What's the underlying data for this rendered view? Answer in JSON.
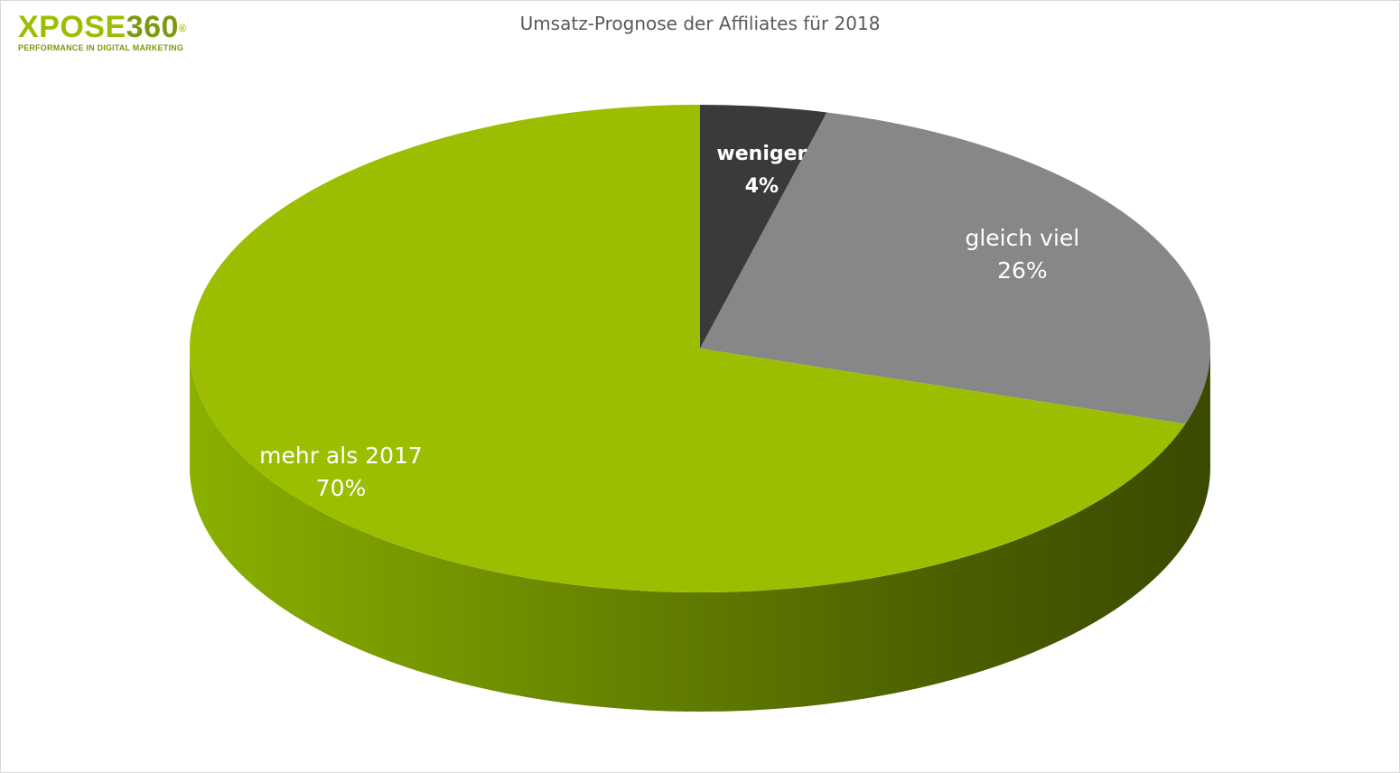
{
  "logo": {
    "brand_letters": "XPOSE",
    "brand_number": "360",
    "registered_mark": "®",
    "tagline": "PERFORMANCE IN DIGITAL MARKETING"
  },
  "colors": {
    "green": "#9bbf00",
    "dark": "#3a3a3a",
    "gray": "#878787",
    "title_text": "#595959"
  },
  "chart_data": {
    "type": "pie",
    "title": "Umsatz-Prognose der Affiliates für 2018",
    "slices": [
      {
        "label": "weniger",
        "value": 4,
        "value_label": "4%",
        "color": "#3a3a3a",
        "label_color": "#ffffff"
      },
      {
        "label": "gleich viel",
        "value": 26,
        "value_label": "26%",
        "color": "#878787",
        "label_color": "#ffffff"
      },
      {
        "label": "mehr als 2017",
        "value": 70,
        "value_label": "70%",
        "color": "#9bbf00",
        "label_color": "#ffffff"
      }
    ],
    "legend": "none",
    "data_labels": "inside"
  }
}
